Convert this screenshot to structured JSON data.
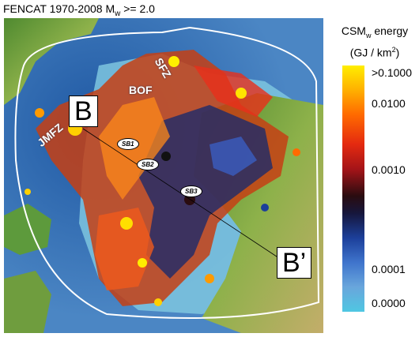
{
  "title": {
    "prefix": "FENCAT 1970-2008 M",
    "sub": "w",
    "suffix": " >= 2.0"
  },
  "legend": {
    "line1_prefix": "CSM",
    "line1_sub": "w",
    "line1_suffix": " energy",
    "line2_prefix": "(GJ / km",
    "line2_sup": "2",
    "line2_suffix": ")",
    "ticks": [
      ">0.1000",
      "0.0100",
      "0.0010",
      "0.0001",
      "0.0000"
    ]
  },
  "labels": {
    "B": "B",
    "B_prime": "B’",
    "JMFZ": "JMFZ",
    "BOF": "BOF",
    "SFZ": "SFZ",
    "SB1": "SB1",
    "SB2": "SB2",
    "SB3": "SB3"
  },
  "colors": {
    "sea_deep": "#2e6db0",
    "sea_shelf": "#7ec6df",
    "land": "#6f9d3e",
    "boundary": "#ffffff",
    "scale_high": "#ffee00",
    "scale_mid": "#a51418",
    "scale_low": "#4fc7e2"
  }
}
